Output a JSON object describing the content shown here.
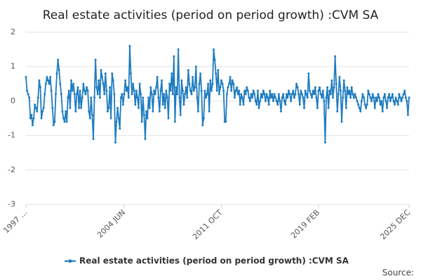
{
  "chart_data": {
    "type": "line",
    "title": "Real estate activities (period on period growth) :CVM SA",
    "source": "Source:",
    "categories": [
      "1997 ...",
      null,
      null,
      null,
      null,
      null,
      null,
      null,
      null,
      null,
      null,
      null,
      null,
      null,
      null,
      null,
      null,
      null,
      null,
      null,
      null,
      null,
      null,
      null,
      null,
      null,
      null,
      null,
      null,
      null,
      null,
      null,
      null,
      null,
      null,
      null,
      null,
      null,
      null,
      null,
      null,
      null,
      null,
      null,
      null,
      null,
      null,
      null,
      null,
      null,
      null,
      null,
      null,
      null,
      null,
      null,
      null,
      null,
      null,
      null,
      null,
      null,
      null,
      null,
      null,
      null,
      null,
      null,
      null,
      null,
      null,
      null,
      null,
      null,
      null,
      null,
      null,
      null,
      null,
      null,
      null,
      null,
      null,
      null,
      null,
      null,
      null,
      null,
      null,
      "2004 JUN",
      null,
      null,
      null,
      null,
      null,
      null,
      null,
      null,
      null,
      null,
      null,
      null,
      null,
      null,
      null,
      null,
      null,
      null,
      null,
      null,
      null,
      null,
      null,
      null,
      null,
      null,
      null,
      null,
      null,
      null,
      null,
      null,
      null,
      null,
      null,
      null,
      null,
      null,
      null,
      null,
      null,
      null,
      null,
      null,
      null,
      null,
      null,
      null,
      null,
      null,
      null,
      null,
      null,
      null,
      null,
      null,
      null,
      null,
      null,
      null,
      null,
      null,
      null,
      null,
      null,
      null,
      null,
      null,
      null,
      null,
      null,
      null,
      null,
      null,
      null,
      null,
      null,
      null,
      null,
      null,
      null,
      null,
      null,
      null,
      null,
      null,
      null,
      "2011 OCT",
      null,
      null,
      null,
      null,
      null,
      null,
      null,
      null,
      null,
      null,
      null,
      null,
      null,
      null,
      null,
      null,
      null,
      null,
      null,
      null,
      null,
      null,
      null,
      null,
      null,
      null,
      null,
      null,
      null,
      null,
      null,
      null,
      null,
      null,
      null,
      null,
      null,
      null,
      null,
      null,
      null,
      null,
      null,
      null,
      null,
      null,
      null,
      null,
      null,
      null,
      null,
      null,
      null,
      null,
      null,
      null,
      null,
      null,
      null,
      null,
      null,
      null,
      null,
      null,
      null,
      null,
      null,
      null,
      null,
      null,
      null,
      null,
      null,
      null,
      null,
      null,
      null,
      null,
      null,
      null,
      null,
      null,
      null,
      null,
      null,
      null,
      null,
      "2019 FEB",
      null,
      null,
      null,
      null,
      null,
      null,
      null,
      null,
      null,
      null,
      null,
      null,
      null,
      null,
      null,
      null,
      null,
      null,
      null,
      null,
      null,
      null,
      null,
      null,
      null,
      null,
      null,
      null,
      null,
      null,
      null,
      null,
      null,
      null,
      null,
      null,
      null,
      null,
      null,
      null,
      null,
      null,
      null,
      null,
      null,
      null,
      null,
      null,
      null,
      null,
      null,
      null,
      null,
      null,
      null,
      null,
      null,
      null,
      null,
      null,
      null,
      null,
      null,
      null,
      null,
      null,
      null,
      null,
      null,
      null,
      null,
      null,
      null,
      null,
      null,
      null,
      null,
      null,
      null,
      null,
      null,
      "2025 DEC"
    ],
    "series": [
      {
        "name": "Real estate activities (period on period growth) :CVM SA",
        "color": "#1f7cc0",
        "values": [
          0.7,
          0.3,
          0.2,
          0.1,
          -0.5,
          -0.4,
          -0.7,
          -0.5,
          -0.1,
          -0.2,
          -0.3,
          0.1,
          0.6,
          0.4,
          -0.5,
          -0.3,
          -0.2,
          0.2,
          0.5,
          0.7,
          0.6,
          0.5,
          0.7,
          0.3,
          -0.2,
          -0.7,
          -0.6,
          0.2,
          0.8,
          1.2,
          0.9,
          0.5,
          0.2,
          -0.3,
          -0.5,
          -0.6,
          -0.3,
          -0.6,
          0.1,
          0.3,
          -0.2,
          0.6,
          0.3,
          0.5,
          0.2,
          -0.3,
          0.2,
          0.4,
          -0.2,
          0.3,
          -0.2,
          0.1,
          0.5,
          0.3,
          0.2,
          0.4,
          0.3,
          -0.3,
          -0.5,
          0.1,
          -0.4,
          -1.1,
          0.1,
          1.2,
          0.4,
          0.2,
          0.6,
          0.1,
          0.9,
          0.7,
          0.5,
          0.2,
          0.8,
          0.3,
          -0.3,
          -0.2,
          0.4,
          -0.5,
          0.8,
          0.6,
          0.2,
          -1.2,
          -0.6,
          -0.2,
          -0.5,
          -0.8,
          0.1,
          0.2,
          -0.1,
          0.2,
          0.6,
          0.3,
          0.4,
          0.1,
          1.6,
          0.8,
          0.2,
          0.5,
          0.3,
          -0.1,
          0.3,
          0.1,
          -0.2,
          0.5,
          0.2,
          -0.6,
          0.1,
          -0.4,
          -1.1,
          -0.3,
          -0.5,
          0.1,
          -0.2,
          0.4,
          0.2,
          -0.3,
          0.3,
          0.2,
          0.4,
          0.7,
          0.1,
          -0.3,
          0.3,
          0.6,
          -0.1,
          0.2,
          -0.2,
          0.3,
          0.1,
          -0.5,
          0.5,
          0.3,
          0.8,
          0.2,
          1.3,
          -0.6,
          0.4,
          0.2,
          1.5,
          0.1,
          -0.4,
          0.6,
          0.3,
          -0.1,
          0.2,
          0.4,
          0.1,
          0.9,
          0.5,
          0.3,
          0.2,
          0.7,
          0.3,
          0.4,
          1.0,
          0.1,
          -0.3,
          0.5,
          0.8,
          0.3,
          -0.7,
          -0.5,
          0.3,
          0.1,
          0.2,
          0.5,
          -0.3,
          0.6,
          0.3,
          0.5,
          1.5,
          1.2,
          0.8,
          0.3,
          0.9,
          0.2,
          0.4,
          0.6,
          0.5,
          0.3,
          -0.6,
          -0.6,
          0.2,
          0.4,
          0.5,
          0.7,
          0.3,
          0.6,
          0.5,
          0.1,
          0.3,
          0.4,
          0.2,
          0.3,
          -0.1,
          0.2,
          0.1,
          -0.1,
          0.3,
          0.2,
          0.4,
          0.3,
          0.1,
          0.0,
          0.2,
          0.1,
          0.3,
          0.2,
          0.0,
          -0.1,
          0.3,
          -0.2,
          0.0,
          0.2,
          0.1,
          0.3,
          0.2,
          0.0,
          0.2,
          0.1,
          -0.1,
          0.3,
          0.1,
          0.2,
          0.0,
          0.2,
          0.1,
          0.0,
          -0.1,
          0.2,
          0.0,
          -0.3,
          0.1,
          0.2,
          0.0,
          -0.1,
          0.2,
          0.1,
          0.3,
          0.2,
          0.0,
          0.2,
          0.3,
          0.1,
          0.2,
          0.5,
          0.4,
          0.2,
          -0.1,
          0.3,
          0.2,
          0.1,
          -0.2,
          0.3,
          0.2,
          0.1,
          0.8,
          0.3,
          0.2,
          0.1,
          0.3,
          0.2,
          0.4,
          0.1,
          -0.2,
          0.3,
          0.4,
          0.2,
          0.1,
          0.3,
          0.0,
          -1.2,
          0.1,
          0.4,
          -0.2,
          0.3,
          0.2,
          0.6,
          0.1,
          0.4,
          1.3,
          0.5,
          -0.3,
          0.2,
          0.7,
          0.3,
          -0.6,
          0.1,
          0.6,
          0.3,
          -0.2,
          0.4,
          0.2,
          0.3,
          0.1,
          0.4,
          0.2,
          0.1,
          0.2,
          0.1,
          0.0,
          -0.1,
          -0.2,
          -0.3,
          0.0,
          0.2,
          0.1,
          -0.1,
          -0.2,
          -0.1,
          0.3,
          0.2,
          0.1,
          0.0,
          0.2,
          0.1,
          -0.2,
          0.1,
          0.0,
          0.2,
          0.1,
          -0.1,
          0.0,
          -0.3,
          0.1,
          0.2,
          0.0,
          -0.2,
          0.1,
          0.2,
          0.0,
          0.1,
          0.2,
          0.0,
          -0.1,
          0.1,
          0.0,
          -0.1,
          0.2,
          0.1,
          0.0,
          0.1,
          0.2,
          0.3,
          0.1,
          0.0,
          -0.4,
          0.1
        ]
      }
    ],
    "ylim": [
      -3,
      2
    ],
    "yticks": [
      -3,
      -2,
      -1,
      0,
      1,
      2
    ],
    "grid": true
  }
}
